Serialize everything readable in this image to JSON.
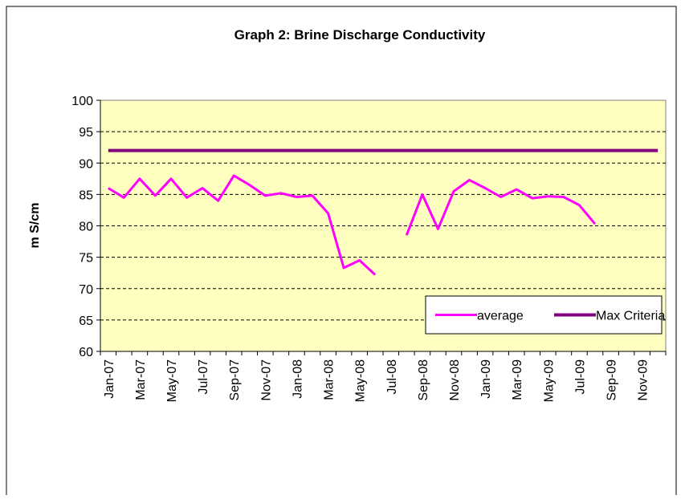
{
  "chart_data": {
    "type": "line",
    "title": "Graph 2: Brine Discharge Conductivity",
    "y_label": "m S/cm",
    "categories": [
      "Jan-07",
      null,
      "Mar-07",
      null,
      "May-07",
      null,
      "Jul-07",
      null,
      "Sep-07",
      null,
      "Nov-07",
      null,
      "Jan-08",
      null,
      "Mar-08",
      null,
      "May-08",
      null,
      "Jul-08",
      null,
      "Sep-08",
      null,
      "Nov-08",
      null,
      "Jan-09",
      null,
      "Mar-09",
      null,
      "May-09",
      null,
      "Jul-09",
      null,
      "Sep-09",
      null,
      "Nov-09",
      null
    ],
    "series": [
      {
        "name": "average",
        "color": "#ff00ff",
        "values": [
          86,
          84.5,
          87.5,
          84.8,
          87.5,
          84.5,
          86,
          84,
          88,
          86.5,
          84.8,
          85.2,
          84.6,
          84.8,
          82,
          73.3,
          74.5,
          72.2,
          null,
          78.5,
          85,
          79.5,
          85.5,
          87.3,
          86,
          84.6,
          85.8,
          84.4,
          84.7,
          84.6,
          83.3,
          80.3,
          null,
          null,
          null,
          null
        ]
      },
      {
        "name": "Max Criteria",
        "color": "#800080",
        "values": [
          92,
          92,
          92,
          92,
          92,
          92,
          92,
          92,
          92,
          92,
          92,
          92,
          92,
          92,
          92,
          92,
          92,
          92,
          92,
          92,
          92,
          92,
          92,
          92,
          92,
          92,
          92,
          92,
          92,
          92,
          92,
          92,
          92,
          92,
          92,
          92
        ]
      }
    ],
    "ylim": [
      60,
      100
    ],
    "yticks": [
      60,
      65,
      70,
      75,
      80,
      85,
      90,
      95,
      100
    ],
    "grid": true,
    "legend": "lower right",
    "plot_background": "#ffffc0"
  }
}
